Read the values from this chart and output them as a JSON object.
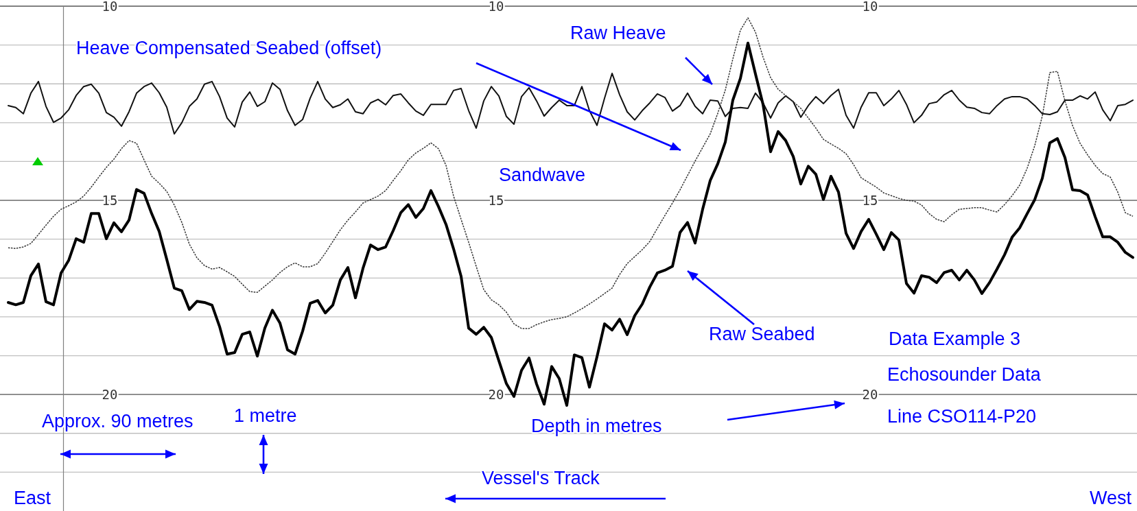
{
  "chart_data": {
    "type": "line",
    "title": "Data Example 3",
    "subtitle": "Echosounder Data",
    "annotations": [
      "Heave Compensated Seabed (offset)",
      "Sandwave",
      "Raw Seabed",
      "Line CSO114-P20",
      "Approx. 90 metres",
      "1 metre",
      "Depth in metres",
      "Vessel's Track",
      "East",
      "West"
    ],
    "categories": [
      null,
      null,
      null,
      null,
      null,
      null,
      null,
      null,
      null,
      null,
      null,
      null,
      null,
      null,
      null,
      null,
      null,
      null,
      null,
      null,
      null,
      null,
      null,
      null,
      null,
      null,
      null,
      null,
      null,
      null,
      null,
      null,
      null,
      null,
      null,
      null,
      null,
      null,
      null,
      null,
      null,
      null,
      null,
      null,
      null,
      null,
      null,
      null,
      null,
      null,
      null,
      null,
      null,
      null,
      null,
      null,
      null,
      null,
      null,
      null,
      null,
      null,
      null,
      null,
      null,
      null,
      null,
      null,
      null,
      null,
      null,
      null,
      null,
      null,
      null,
      null,
      null,
      null,
      null,
      null,
      null,
      null,
      null,
      null,
      null,
      null,
      null,
      null,
      null,
      null,
      null,
      null,
      null,
      null,
      null,
      null,
      null,
      null,
      null,
      null,
      null,
      null,
      null,
      null,
      null,
      null,
      null,
      null,
      null,
      null,
      null,
      null,
      null,
      null,
      null,
      null,
      null,
      null,
      null,
      null,
      null,
      null,
      null,
      null,
      null,
      null,
      null,
      null,
      null,
      null,
      null,
      null,
      null,
      null,
      null,
      null,
      null,
      null,
      null,
      null,
      null,
      null,
      null,
      null,
      null,
      null,
      null,
      null,
      null,
      null
    ],
    "series": [
      {
        "name": "Raw Heave",
        "color": "#111111",
        "values": [
          12.56,
          12.61,
          12.77,
          12.24,
          11.94,
          12.58,
          12.99,
          12.88,
          12.67,
          12.3,
          12.07,
          12.01,
          12.24,
          12.74,
          12.86,
          13.09,
          12.72,
          12.24,
          12.07,
          11.98,
          12.23,
          12.6,
          13.29,
          13.0,
          12.58,
          12.39,
          12.01,
          11.94,
          12.33,
          12.88,
          13.11,
          12.47,
          12.21,
          12.58,
          12.46,
          11.98,
          12.14,
          12.69,
          13.07,
          12.92,
          12.37,
          11.94,
          12.39,
          12.61,
          12.54,
          12.39,
          12.72,
          12.77,
          12.49,
          12.4,
          12.54,
          12.3,
          12.26,
          12.49,
          12.7,
          12.81,
          12.53,
          12.53,
          12.53,
          12.17,
          12.12,
          12.69,
          13.14,
          12.44,
          12.07,
          12.31,
          12.84,
          13.04,
          12.33,
          12.1,
          12.44,
          12.83,
          12.61,
          12.42,
          12.56,
          12.56,
          12.07,
          12.69,
          13.07,
          12.37,
          11.73,
          12.28,
          12.72,
          12.93,
          12.69,
          12.49,
          12.26,
          12.35,
          12.7,
          12.56,
          12.24,
          12.58,
          12.77,
          12.42,
          12.44,
          12.84,
          12.63,
          12.61,
          12.63,
          12.24,
          12.49,
          12.88,
          12.49,
          12.31,
          12.46,
          12.86,
          12.56,
          12.33,
          12.51,
          12.3,
          12.14,
          12.81,
          13.14,
          12.6,
          12.23,
          12.23,
          12.56,
          12.39,
          12.17,
          12.53,
          13.0,
          12.81,
          12.51,
          12.47,
          12.28,
          12.17,
          12.42,
          12.6,
          12.63,
          12.74,
          12.77,
          12.56,
          12.39,
          12.33,
          12.33,
          12.39,
          12.56,
          12.77,
          12.79,
          12.72,
          12.42,
          12.42,
          12.31,
          12.39,
          12.21,
          12.67,
          12.95,
          12.56,
          12.53,
          12.42
        ]
      },
      {
        "color": "#333333",
        "line_style": "dotted",
        "values": [
          16.22,
          16.24,
          16.2,
          16.11,
          15.88,
          15.64,
          15.41,
          15.23,
          15.14,
          15.04,
          14.89,
          14.66,
          14.4,
          14.15,
          13.94,
          13.67,
          13.46,
          13.53,
          13.96,
          14.38,
          14.56,
          14.77,
          15.12,
          15.57,
          16.13,
          16.48,
          16.68,
          16.77,
          16.73,
          16.84,
          16.96,
          17.16,
          17.35,
          17.37,
          17.21,
          17.05,
          16.86,
          16.71,
          16.61,
          16.71,
          16.71,
          16.63,
          16.36,
          16.06,
          15.76,
          15.51,
          15.3,
          15.07,
          14.98,
          14.89,
          14.75,
          14.49,
          14.24,
          13.96,
          13.78,
          13.66,
          13.52,
          13.67,
          14.1,
          14.89,
          15.49,
          16.08,
          16.7,
          17.3,
          17.56,
          17.69,
          17.88,
          18.18,
          18.3,
          18.3,
          18.2,
          18.13,
          18.07,
          18.04,
          18.0,
          17.9,
          17.79,
          17.67,
          17.54,
          17.4,
          17.26,
          16.91,
          16.63,
          16.45,
          16.27,
          16.06,
          15.72,
          15.39,
          15.07,
          14.73,
          14.36,
          13.99,
          13.64,
          13.29,
          12.76,
          12.16,
          11.36,
          10.62,
          10.3,
          10.67,
          11.31,
          11.84,
          12.14,
          12.3,
          12.46,
          12.63,
          12.88,
          13.14,
          13.43,
          13.55,
          13.66,
          13.8,
          14.08,
          14.42,
          14.54,
          14.66,
          14.81,
          14.88,
          14.95,
          15.0,
          15.02,
          15.12,
          15.34,
          15.49,
          15.55,
          15.37,
          15.23,
          15.21,
          15.19,
          15.19,
          15.25,
          15.3,
          15.11,
          14.88,
          14.61,
          14.17,
          13.59,
          12.83,
          11.71,
          11.68,
          12.44,
          13.07,
          13.53,
          13.83,
          14.1,
          14.31,
          14.4,
          14.79,
          15.32,
          15.41
        ]
      },
      {
        "color": "#000000",
        "values": [
          17.63,
          17.69,
          17.63,
          16.94,
          16.64,
          17.61,
          17.69,
          16.87,
          16.55,
          15.99,
          16.08,
          15.34,
          15.34,
          15.99,
          15.58,
          15.81,
          15.51,
          14.72,
          14.82,
          15.34,
          15.8,
          16.52,
          17.26,
          17.33,
          17.81,
          17.6,
          17.63,
          17.7,
          18.25,
          18.96,
          18.92,
          18.45,
          18.39,
          19.01,
          18.29,
          17.83,
          18.16,
          18.85,
          18.96,
          18.37,
          17.65,
          17.58,
          17.9,
          17.7,
          17.05,
          16.73,
          17.51,
          16.75,
          16.15,
          16.27,
          16.2,
          15.78,
          15.32,
          15.11,
          15.44,
          15.21,
          14.75,
          15.16,
          15.62,
          16.25,
          16.96,
          18.29,
          18.45,
          18.27,
          18.53,
          19.13,
          19.72,
          20.05,
          19.38,
          19.06,
          19.73,
          20.25,
          19.28,
          19.59,
          20.28,
          18.98,
          19.05,
          19.81,
          19.03,
          18.18,
          18.34,
          18.06,
          18.46,
          17.97,
          17.67,
          17.23,
          16.87,
          16.8,
          16.7,
          15.83,
          15.57,
          16.1,
          15.23,
          14.49,
          14.06,
          13.5,
          12.42,
          11.86,
          10.95,
          11.75,
          12.53,
          13.75,
          13.23,
          13.46,
          13.87,
          14.58,
          14.12,
          14.33,
          14.98,
          14.38,
          14.79,
          15.85,
          16.24,
          15.8,
          15.49,
          15.87,
          16.27,
          15.83,
          16.02,
          17.14,
          17.39,
          16.94,
          16.98,
          17.12,
          16.86,
          16.8,
          17.05,
          16.8,
          17.05,
          17.4,
          17.12,
          16.77,
          16.4,
          15.95,
          15.71,
          15.34,
          14.98,
          14.43,
          13.52,
          13.41,
          13.9,
          14.73,
          14.75,
          14.86,
          15.42,
          15.94,
          15.94,
          16.08,
          16.34,
          16.47
        ]
      }
    ],
    "ylim": [
      23,
      10
    ],
    "yticks": [
      10,
      {
        "value": 11,
        "label": null
      },
      {
        "value": 12,
        "label": null
      },
      {
        "value": 13,
        "label": null
      },
      {
        "value": 14,
        "label": null
      },
      15,
      {
        "value": 16,
        "label": null
      },
      {
        "value": 17,
        "label": null
      },
      {
        "value": 18,
        "label": null
      },
      {
        "value": 19,
        "label": null
      },
      20,
      {
        "value": 21,
        "label": null
      },
      {
        "value": 22,
        "label": null
      }
    ],
    "y2lim": [
      23,
      10
    ],
    "y2ticks": [
      10,
      15,
      20
    ],
    "y3lim": [
      23,
      10
    ],
    "y3ticks": [
      10,
      15,
      20
    ],
    "grid": "y",
    "tick_labels": "y"
  }
}
